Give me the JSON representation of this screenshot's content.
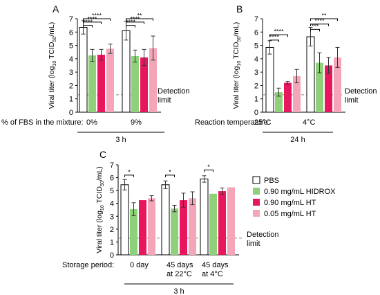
{
  "colors": {
    "PBS": "#ffffff",
    "HIDROX": "#8fd17a",
    "HT_090": "#e8175d",
    "HT_005": "#f4a6b8"
  },
  "ylabel": "Viral titer (log10 TCID50/mL)",
  "detection_label": [
    "Detection",
    "limit"
  ],
  "legend": {
    "items": [
      {
        "label": "PBS",
        "color": "#ffffff"
      },
      {
        "label": "0.90 mg/mL HIDROX",
        "color": "#8fd17a"
      },
      {
        "label": "0.90 mg/mL HT",
        "color": "#e8175d"
      },
      {
        "label": "0.05 mg/mL HT",
        "color": "#f4a6b8"
      }
    ]
  },
  "chart_data": [
    {
      "panel": "A",
      "type": "bar",
      "xlabel": "% of FBS in the mixture:",
      "group_labels": [
        [
          "0%"
        ],
        [
          "9%"
        ]
      ],
      "footer": "3 h",
      "ylim": [
        0,
        7
      ],
      "yticks": [
        0,
        1,
        2,
        3,
        4,
        5,
        6,
        7
      ],
      "detection_limit": 1.3,
      "series": [
        {
          "name": "PBS",
          "values": [
            6.35,
            6.1
          ],
          "err": [
            0.5,
            0.7
          ]
        },
        {
          "name": "0.90 mg/mL HIDROX",
          "values": [
            4.25,
            4.2
          ],
          "err": [
            0.45,
            0.45
          ]
        },
        {
          "name": "0.90 mg/mL HT",
          "values": [
            4.3,
            4.1
          ],
          "err": [
            0.4,
            0.6
          ]
        },
        {
          "name": "0.05 mg/mL HT",
          "values": [
            4.75,
            4.8
          ],
          "err": [
            0.35,
            0.9
          ]
        }
      ],
      "significance": [
        {
          "group": 0,
          "from": 0,
          "to": 3,
          "label": "****",
          "y": 7.0
        },
        {
          "group": 0,
          "from": 0,
          "to": 2,
          "label": "****",
          "y": 6.75
        },
        {
          "group": 0,
          "from": 0,
          "to": 1,
          "label": "****",
          "y": 6.5
        },
        {
          "group": 1,
          "from": 0,
          "to": 3,
          "label": "**",
          "y": 7.0
        },
        {
          "group": 1,
          "from": 0,
          "to": 2,
          "label": "****",
          "y": 6.75
        },
        {
          "group": 1,
          "from": 0,
          "to": 1,
          "label": "****",
          "y": 6.5
        }
      ]
    },
    {
      "panel": "B",
      "type": "bar",
      "xlabel": "Reaction temperature:",
      "group_labels": [
        [
          "25°C"
        ],
        [
          "4°C"
        ]
      ],
      "footer": "24 h",
      "ylim": [
        0,
        7
      ],
      "yticks": [
        0,
        1,
        2,
        3,
        4,
        5,
        6,
        7
      ],
      "detection_limit": 1.3,
      "series": [
        {
          "name": "PBS",
          "values": [
            4.85,
            5.65
          ],
          "err": [
            0.5,
            0.7
          ]
        },
        {
          "name": "0.90 mg/mL HIDROX",
          "values": [
            1.5,
            3.7
          ],
          "err": [
            0.3,
            0.75
          ]
        },
        {
          "name": "0.90 mg/mL HT",
          "values": [
            2.2,
            3.5
          ],
          "err": [
            0.1,
            0.6
          ]
        },
        {
          "name": "0.05 mg/mL HT",
          "values": [
            2.7,
            4.1
          ],
          "err": [
            0.5,
            0.75
          ]
        }
      ],
      "significance": [
        {
          "group": 0,
          "from": 0,
          "to": 2,
          "label": "****",
          "y": 5.8
        },
        {
          "group": 0,
          "from": 0,
          "to": 1,
          "label": "****",
          "y": 5.4
        },
        {
          "group": 1,
          "from": 0,
          "to": 3,
          "label": "**",
          "y": 7.0
        },
        {
          "group": 1,
          "from": 0,
          "to": 2,
          "label": "****",
          "y": 6.6
        },
        {
          "group": 1,
          "from": 0,
          "to": 1,
          "label": "***",
          "y": 6.2
        }
      ]
    },
    {
      "panel": "C",
      "type": "bar",
      "xlabel": "Storage period:",
      "group_labels": [
        [
          "0 day"
        ],
        [
          "45 days",
          "at 22°C"
        ],
        [
          "45 days",
          "at 4°C"
        ]
      ],
      "footer": "3 h",
      "ylim": [
        0,
        7
      ],
      "yticks": [
        0,
        1,
        2,
        3,
        4,
        5,
        6,
        7
      ],
      "detection_limit": 1.3,
      "series": [
        {
          "name": "PBS",
          "values": [
            5.45,
            5.45,
            5.9
          ],
          "err": [
            0.4,
            0.3,
            0.25
          ]
        },
        {
          "name": "0.90 mg/mL HIDROX",
          "values": [
            3.55,
            3.6,
            4.75
          ],
          "err": [
            0.5,
            0.25,
            0.0
          ]
        },
        {
          "name": "0.90 mg/mL HT",
          "values": [
            4.25,
            4.25,
            4.95
          ],
          "err": [
            0.0,
            0.55,
            0.25
          ]
        },
        {
          "name": "0.05 mg/mL HT",
          "values": [
            4.4,
            4.4,
            5.25
          ],
          "err": [
            0.2,
            0.5,
            0.0
          ]
        }
      ],
      "significance": [
        {
          "group": 0,
          "from": 0,
          "to": 1,
          "label": "*",
          "y": 6.2
        },
        {
          "group": 1,
          "from": 0,
          "to": 1,
          "label": "*",
          "y": 6.2
        },
        {
          "group": 2,
          "from": 0,
          "to": 1,
          "label": "*",
          "y": 6.6
        }
      ]
    }
  ]
}
